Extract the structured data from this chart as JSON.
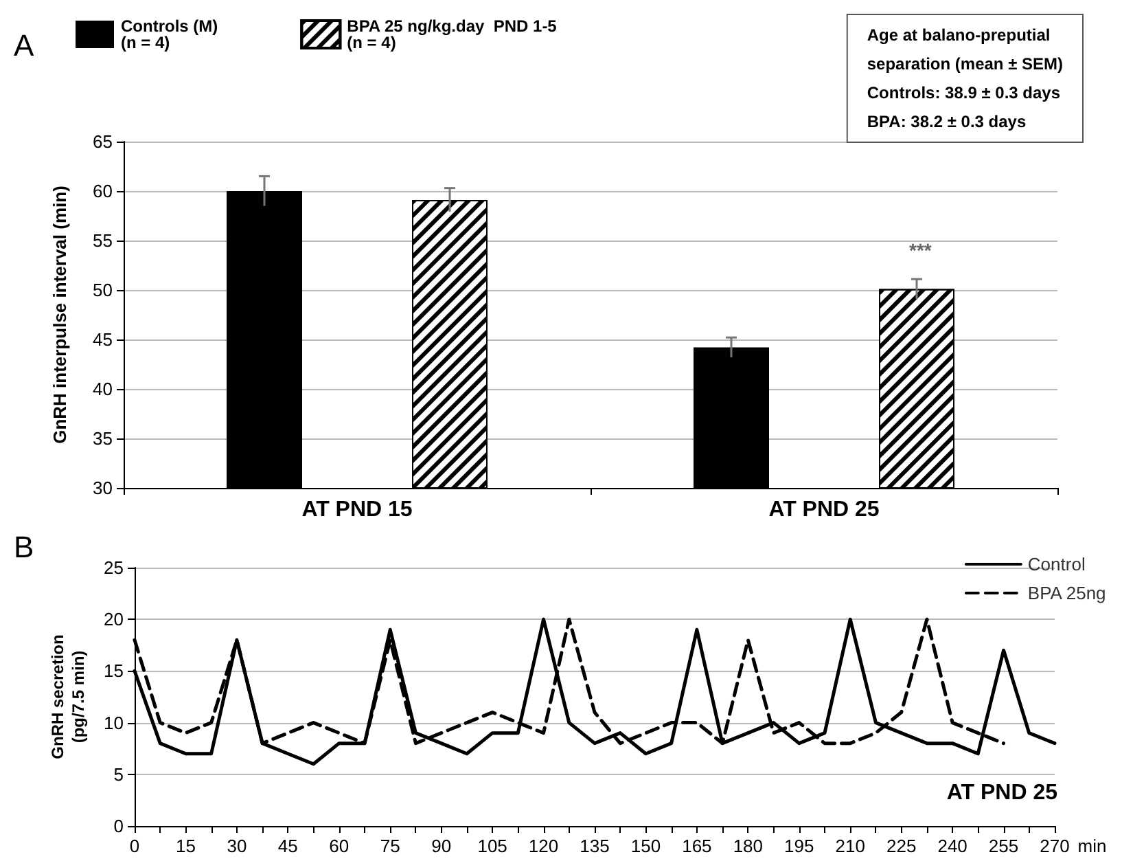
{
  "chart_data": [
    {
      "type": "bar",
      "title": "A",
      "ylabel": "GnRH interpulse interval (min)",
      "categories": [
        "AT PND 15",
        "AT PND 25"
      ],
      "series": [
        {
          "name": "Controls (M)\n(n = 4)",
          "color": "#000000",
          "values": [
            60,
            44.2
          ],
          "errors": [
            1.5,
            1
          ]
        },
        {
          "name": "BPA 25 ng/kg.day  PND 1-5\n(n = 4)",
          "color": "#ffffff",
          "values": [
            59.1,
            50.1
          ],
          "errors": [
            1.2,
            1
          ]
        }
      ],
      "ylim": [
        30,
        65
      ],
      "yticks": [
        30,
        35,
        40,
        45,
        50,
        55,
        60,
        65
      ],
      "grid": "y",
      "legend": "top left",
      "annotations": [
        "***",
        "Age at balano-preputial\nseparation (mean ± SEM)\nControls: 38.9 ± 0.3 days\nBPA: 38.2 ± 0.3 days"
      ]
    },
    {
      "type": "line",
      "title": "B",
      "ylabel": "GnRH secretion\n(pg/7.5 min)",
      "xlabel": "min",
      "marker": "none",
      "legend": "top right",
      "grid": "y",
      "series": [
        {
          "name": "Control",
          "color": "#000000",
          "line_style": "solid",
          "x": [
            0,
            7.5,
            15,
            22.5,
            30,
            37.5,
            45,
            52.5,
            60,
            67.5,
            75,
            82.5,
            90,
            97.5,
            105,
            112.5,
            120,
            127.5,
            135,
            142.5,
            150,
            157.5,
            165,
            172.5,
            180,
            187.5,
            195,
            202.5,
            210,
            217.5,
            225,
            232.5,
            240,
            247.5,
            255,
            262.5,
            270
          ],
          "values": [
            15,
            8,
            7,
            7,
            18,
            8,
            7,
            6,
            8,
            8,
            19,
            9,
            8,
            7,
            9,
            9,
            20,
            10,
            8,
            9,
            7,
            8,
            19,
            8,
            9,
            10,
            8,
            9,
            20,
            10,
            9,
            8,
            8,
            7,
            17,
            9,
            8
          ]
        },
        {
          "name": "BPA 25ng",
          "color": "#000000",
          "line_style": "dashed",
          "x": [
            0,
            7.5,
            15,
            22.5,
            30,
            37.5,
            45,
            52.5,
            60,
            67.5,
            75,
            82.5,
            90,
            97.5,
            105,
            112.5,
            120,
            127.5,
            135,
            142.5,
            150,
            157.5,
            165,
            172.5,
            180,
            187.5,
            195,
            202.5,
            210,
            217.5,
            225,
            232.5,
            240,
            247.5,
            255
          ],
          "values": [
            18,
            10,
            9,
            10,
            18,
            8,
            9,
            10,
            9,
            8,
            18,
            8,
            9,
            10,
            11,
            10,
            9,
            20,
            11,
            8,
            9,
            10,
            10,
            8,
            18,
            9,
            10,
            8,
            8,
            9,
            11,
            20,
            10,
            9,
            8
          ]
        }
      ],
      "xlim": [
        0,
        270
      ],
      "xticks": [
        0,
        {
          "value": 7.5,
          "label": null
        },
        15,
        {
          "value": 22.5,
          "label": null
        },
        30,
        {
          "value": 37.5,
          "label": null
        },
        45,
        {
          "value": 52.5,
          "label": null
        },
        60,
        {
          "value": 67.5,
          "label": null
        },
        75,
        {
          "value": 82.5,
          "label": null
        },
        90,
        {
          "value": 97.5,
          "label": null
        },
        105,
        {
          "value": 112.5,
          "label": null
        },
        120,
        {
          "value": 127.5,
          "label": null
        },
        135,
        {
          "value": 142.5,
          "label": null
        },
        150,
        {
          "value": 157.5,
          "label": null
        },
        165,
        {
          "value": 172.5,
          "label": null
        },
        180,
        {
          "value": 187.5,
          "label": null
        },
        195,
        {
          "value": 202.5,
          "label": null
        },
        210,
        {
          "value": 217.5,
          "label": null
        },
        225,
        {
          "value": 232.5,
          "label": null
        },
        240,
        {
          "value": 247.5,
          "label": null
        },
        255,
        {
          "value": 262.5,
          "label": null
        },
        270
      ],
      "ylim": [
        0,
        25
      ],
      "yticks": [
        0,
        5,
        10,
        15,
        20,
        25
      ],
      "annotations": [
        "AT PND 25"
      ]
    }
  ]
}
